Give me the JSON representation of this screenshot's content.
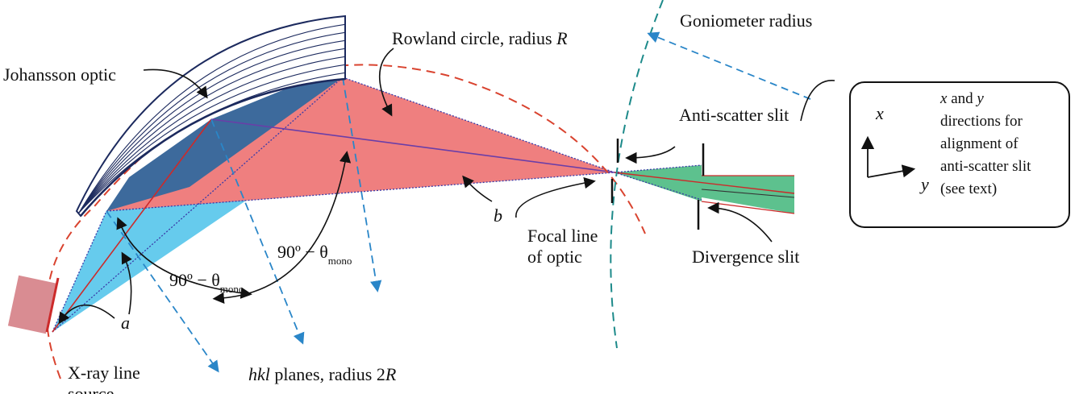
{
  "labels": {
    "johansson_optic": "Johansson optic",
    "rowland_circle": "Rowland circle, radius ",
    "rowland_R": "R",
    "goniometer_radius": "Goniometer radius",
    "anti_scatter_slit": "Anti-scatter slit",
    "focal_line_1": "Focal line",
    "focal_line_2": "of optic",
    "divergence_slit": "Divergence slit",
    "b": "b",
    "a": "a",
    "angle_upper_main": "90º − θ",
    "angle_upper_sub": "mono",
    "angle_lower_main": "90º − θ",
    "angle_lower_sub": "mono",
    "xray_source_1": "X-ray line",
    "xray_source_2": "source",
    "hkl_planes_italic": "hkl",
    "hkl_planes_rest": " planes, radius 2",
    "hkl_planes_R": "R"
  },
  "inset": {
    "x_axis": "x",
    "y_axis": "y",
    "text_line1_x": "x",
    "text_line1_and": " and ",
    "text_line1_y": "y",
    "text_line2": "directions for",
    "text_line3": "alignment of",
    "text_line4": "anti-scatter slit",
    "text_line5": "(see text)"
  },
  "colors": {
    "navy": "#1c2a5e",
    "red_dash": "#d9432f",
    "blue_dash": "#2a86c8",
    "teal_dash": "#1d8a8a",
    "pink_fill": "#ef7f7f",
    "cyan_fill": "#5ec8ec",
    "navy_fill": "#3d6a9c",
    "green_fill": "#5dc18e",
    "source_fill": "#d98c92"
  }
}
